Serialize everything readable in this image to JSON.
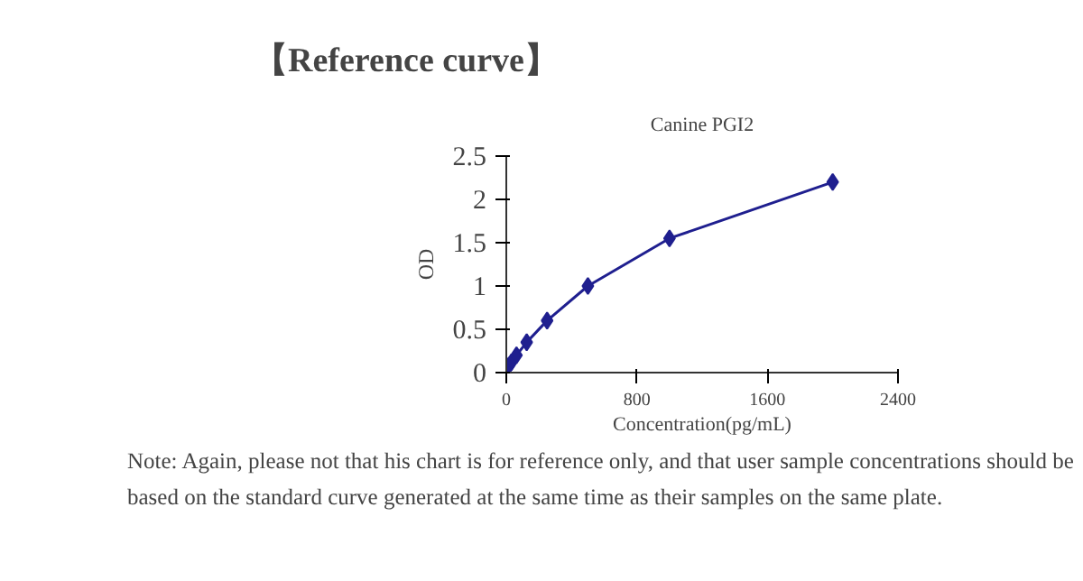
{
  "chart_data": {
    "type": "line",
    "title": "【Reference curve】",
    "subtitle": "Canine PGI2",
    "xlabel": "Concentration(pg/mL)",
    "ylabel": "OD",
    "x": [
      0,
      15.6,
      31.25,
      62.5,
      125,
      250,
      500,
      1000,
      2000
    ],
    "series": [
      {
        "color": "#1f1f8f",
        "values": [
          0.05,
          0.08,
          0.12,
          0.2,
          0.35,
          0.6,
          1.0,
          1.55,
          2.2
        ]
      }
    ],
    "xlim": [
      0,
      2400
    ],
    "xticks": [
      0,
      800,
      1600,
      2400
    ],
    "ylim": [
      0,
      2.5
    ],
    "yticks": [
      0,
      0.5,
      1,
      1.5,
      2,
      2.5
    ],
    "marker": "diamond",
    "line_style": "solid",
    "grid": false,
    "annotations": [
      "Note: Again, please not that his chart is for reference only, and that user sample concentrations should be based on the standard curve generated at the same time as their samples on the same plate."
    ]
  }
}
